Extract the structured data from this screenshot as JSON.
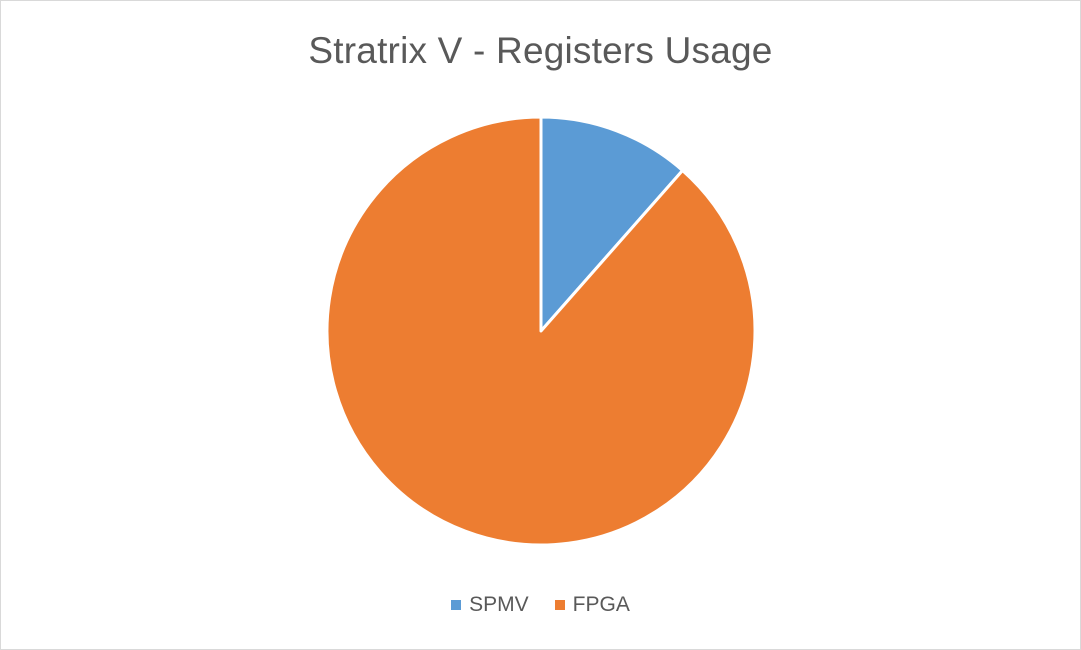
{
  "chart_data": {
    "type": "pie",
    "title": "Stratrix V - Registers Usage",
    "categories": [
      "SPMV",
      "FPGA"
    ],
    "values": [
      11.5,
      88.5
    ],
    "value_unit": "percent",
    "colors": [
      "#5b9bd5",
      "#ed7d31"
    ],
    "start_angle": "top (12 o'clock), clockwise",
    "legend_position": "bottom",
    "slice_border_color": "#ffffff"
  }
}
